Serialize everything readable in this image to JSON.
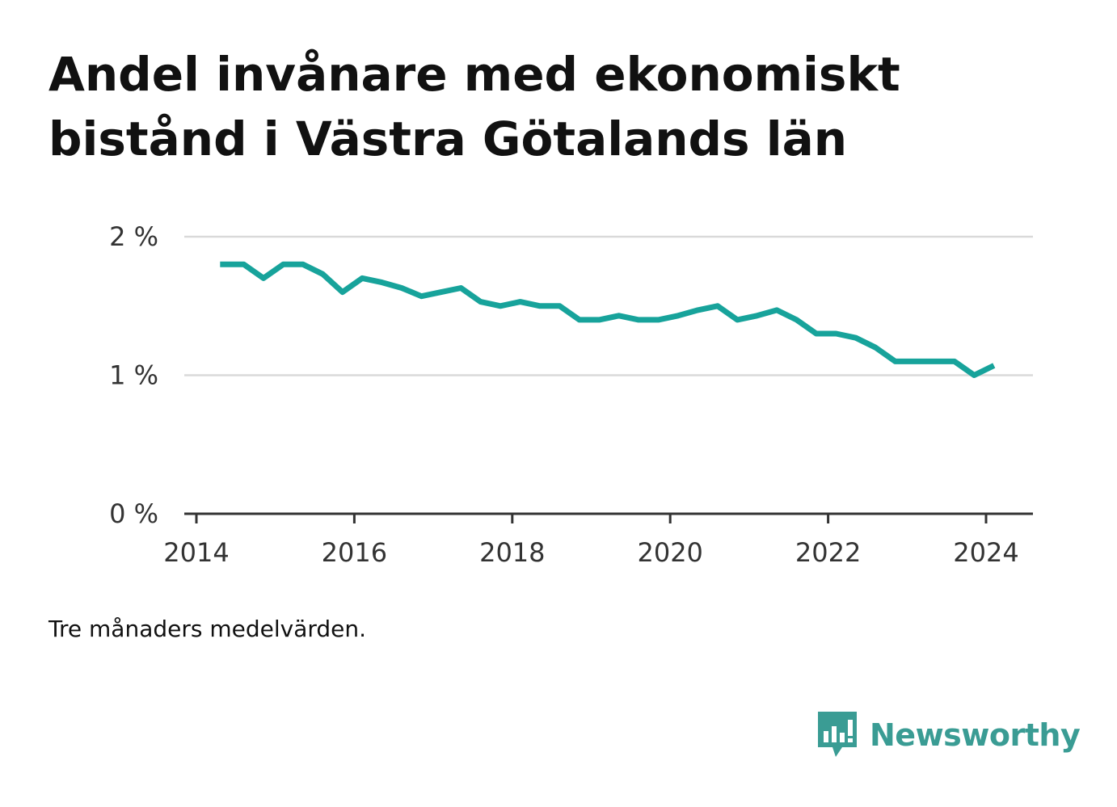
{
  "title_lines": [
    "Andel invånare med ekonomiskt",
    "bistånd i Västra Götalands län"
  ],
  "footnote": "Tre månaders medelvärden.",
  "brand": {
    "name": "Newsworthy",
    "icon": "newsworthy-logo-icon",
    "color": "#3a9c94"
  },
  "colors": {
    "line": "#17a39b",
    "grid": "#d9d9d9",
    "axis": "#333333"
  },
  "chart_data": {
    "type": "line",
    "title": "Andel invånare med ekonomiskt bistånd i Västra Götalands län",
    "xlabel": "",
    "ylabel": "",
    "x_ticks": [
      2014,
      2016,
      2018,
      2020,
      2022,
      2024
    ],
    "y_ticks": [
      {
        "value": 0,
        "label": "0 %"
      },
      {
        "value": 1,
        "label": "1 %"
      },
      {
        "value": 2,
        "label": "2 %"
      }
    ],
    "xlim": [
      2014,
      2024.6
    ],
    "ylim": [
      0,
      2
    ],
    "grid": true,
    "series": [
      {
        "x": [
          2014.3,
          2014.6,
          2014.85,
          2015.1,
          2015.35,
          2015.6,
          2015.85,
          2016.1,
          2016.35,
          2016.6,
          2016.85,
          2017.1,
          2017.35,
          2017.6,
          2017.85,
          2018.1,
          2018.35,
          2018.6,
          2018.85,
          2019.1,
          2019.35,
          2019.6,
          2019.85,
          2020.1,
          2020.35,
          2020.6,
          2020.85,
          2021.1,
          2021.35,
          2021.6,
          2021.85,
          2022.1,
          2022.35,
          2022.6,
          2022.85,
          2023.1,
          2023.35,
          2023.6,
          2023.85,
          2024.1
        ],
        "y": [
          1.8,
          1.8,
          1.7,
          1.8,
          1.8,
          1.73,
          1.6,
          1.7,
          1.67,
          1.63,
          1.57,
          1.6,
          1.63,
          1.53,
          1.5,
          1.53,
          1.5,
          1.5,
          1.4,
          1.4,
          1.43,
          1.4,
          1.4,
          1.43,
          1.47,
          1.5,
          1.4,
          1.43,
          1.47,
          1.4,
          1.3,
          1.3,
          1.27,
          1.2,
          1.1,
          1.1,
          1.1,
          1.1,
          1.0,
          1.07
        ]
      }
    ]
  }
}
